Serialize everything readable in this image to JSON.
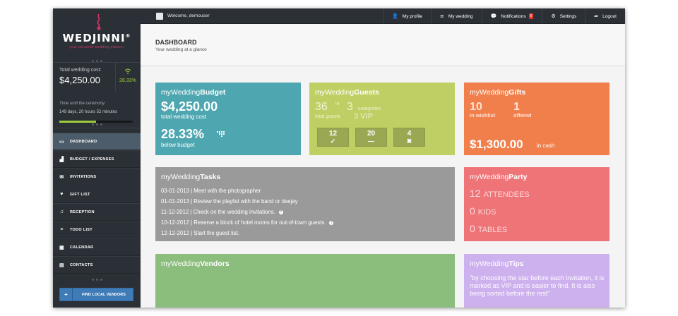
{
  "brand": {
    "name": "WEDJINNI",
    "tagline": "your personal wedding planner"
  },
  "sidebar": {
    "total_cost_label": "Total wedding cost:",
    "total_cost_value": "$4,250.00",
    "budget_percent": "28.33%",
    "time_label": "Time until the ceremony:",
    "time_value": "149 days, 20 hours 52 minutes",
    "time_progress_fraction": 0.5,
    "nav": [
      {
        "label": "DASHBOARD",
        "icon": "monitor-icon",
        "active": true
      },
      {
        "label": "BUDGET / EXPENSES",
        "icon": "bar-chart-icon",
        "active": false
      },
      {
        "label": "INVITATIONS",
        "icon": "envelope-icon",
        "active": false
      },
      {
        "label": "GIFT LIST",
        "icon": "heart-icon",
        "active": false
      },
      {
        "label": "RECEPTION",
        "icon": "music-note-icon",
        "active": false
      },
      {
        "label": "TODO LIST",
        "icon": "list-icon",
        "active": false
      },
      {
        "label": "CALENDAR",
        "icon": "calendar-icon",
        "active": false
      },
      {
        "label": "CONTACTS",
        "icon": "contacts-icon",
        "active": false
      }
    ],
    "find_vendors_label": "FIND LOCAL VENDORS"
  },
  "topbar": {
    "welcome": "Welcome, demouser",
    "links": [
      {
        "label": "My profile",
        "icon": "user-icon"
      },
      {
        "label": "My wedding",
        "icon": "menu-icon"
      },
      {
        "label": "Notifications",
        "icon": "chat-icon",
        "badge": "8"
      },
      {
        "label": "Settings",
        "icon": "gear-icon"
      },
      {
        "label": "Logout",
        "icon": "logout-arrow-icon"
      }
    ]
  },
  "header": {
    "title": "DASHBOARD",
    "subtitle": "Your wedding at a glance"
  },
  "budget": {
    "title_prefix": "myWedding",
    "title_strong": "Budget",
    "value": "$4,250.00",
    "value_label": "total wedding cost",
    "percent": "28.33%",
    "percent_label": "below budget"
  },
  "guests": {
    "title_prefix": "myWedding",
    "title_strong": "Guests",
    "total": "36",
    "in_label": "in",
    "categories": "3",
    "categories_label": "categories",
    "total_label": "total guests",
    "vip": "3 VIP",
    "boxes": [
      {
        "count": "12",
        "symbol": "✓",
        "icon": "check-icon"
      },
      {
        "count": "20",
        "symbol": "—",
        "icon": "dash-icon"
      },
      {
        "count": "4",
        "symbol": "✖",
        "icon": "cross-icon"
      }
    ]
  },
  "gifts": {
    "title_prefix": "myWedding",
    "title_strong": "Gifts",
    "wishlist_count": "10",
    "wishlist_label": "in wishlist",
    "offered_count": "1",
    "offered_label": "offered",
    "cash": "$1,300.00",
    "cash_label": "in cash"
  },
  "tasks": {
    "title_prefix": "myWedding",
    "title_strong": "Tasks",
    "items": [
      {
        "text": "03-01-2013 | Meet with the photographer",
        "info": false
      },
      {
        "text": "01-01-2013 | Review the playlist with the band or deejay",
        "info": false
      },
      {
        "text": "11-12-2012 | Check on the wedding invitations.",
        "info": true
      },
      {
        "text": "10-12-2012 | Reserve a block of hotel rooms for out-of-town guests.",
        "info": true
      },
      {
        "text": "12-12-2012 | Start the guest list.",
        "info": false
      }
    ]
  },
  "party": {
    "title_prefix": "myWedding",
    "title_strong": "Party",
    "attendees": "12",
    "attendees_label": "ATTENDEES",
    "kids": "0",
    "kids_label": "KIDS",
    "tables": "0",
    "tables_label": "TABLES"
  },
  "vendors": {
    "title_prefix": "myWedding",
    "title_strong": "Vendors"
  },
  "tips": {
    "title_prefix": "myWedding",
    "title_strong": "Tips",
    "text": "\"by choosing the star before each invitation, it is marked as VIP and is easier to find. It is also being sorted before the rest\""
  },
  "colors": {
    "budget": "#4da6b0",
    "guests": "#bfcf63",
    "gifts": "#f07f4b",
    "tasks": "#9a9a9a",
    "party": "#ef7478",
    "vendors": "#8bbd7d",
    "tips": "#cdb0ee",
    "sidebar": "#2b3036",
    "accent_green": "#9ccc3c",
    "notification_badge": "#e0352b"
  }
}
